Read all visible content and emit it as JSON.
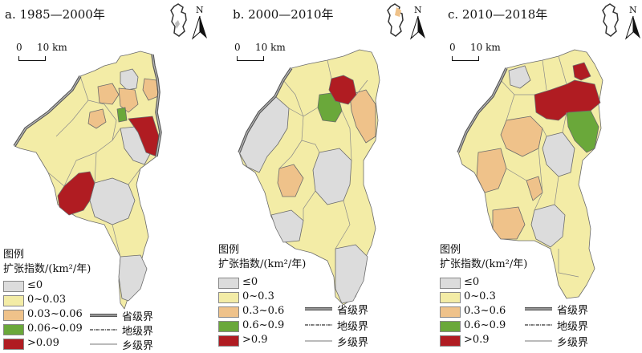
{
  "panels": [
    {
      "title": "a. 1985—2000年"
    },
    {
      "title": "b. 2000—2010年"
    },
    {
      "title": "c. 2010—2018年"
    }
  ],
  "scalebar": {
    "zero": "0",
    "ten": "10 km"
  },
  "north_label": "N",
  "legend": {
    "title": "图例",
    "subtitle": "扩张指数/(km²/年)",
    "a_classes": [
      "≤0",
      "0~0.03",
      "0.03~0.06",
      "0.06~0.09",
      ">0.09"
    ],
    "bc_classes": [
      "≤0",
      "0~0.3",
      "0.3~0.6",
      "0.6~0.9",
      ">0.9"
    ],
    "boundaries": [
      "省级界",
      "地级界",
      "乡级界"
    ]
  },
  "colors": {
    "class0": "#dcdcdc",
    "class1": "#f3eca6",
    "class2": "#efc28a",
    "class3": "#6aa83a",
    "class4": "#b01c22",
    "border": "#6b6b6b"
  }
}
